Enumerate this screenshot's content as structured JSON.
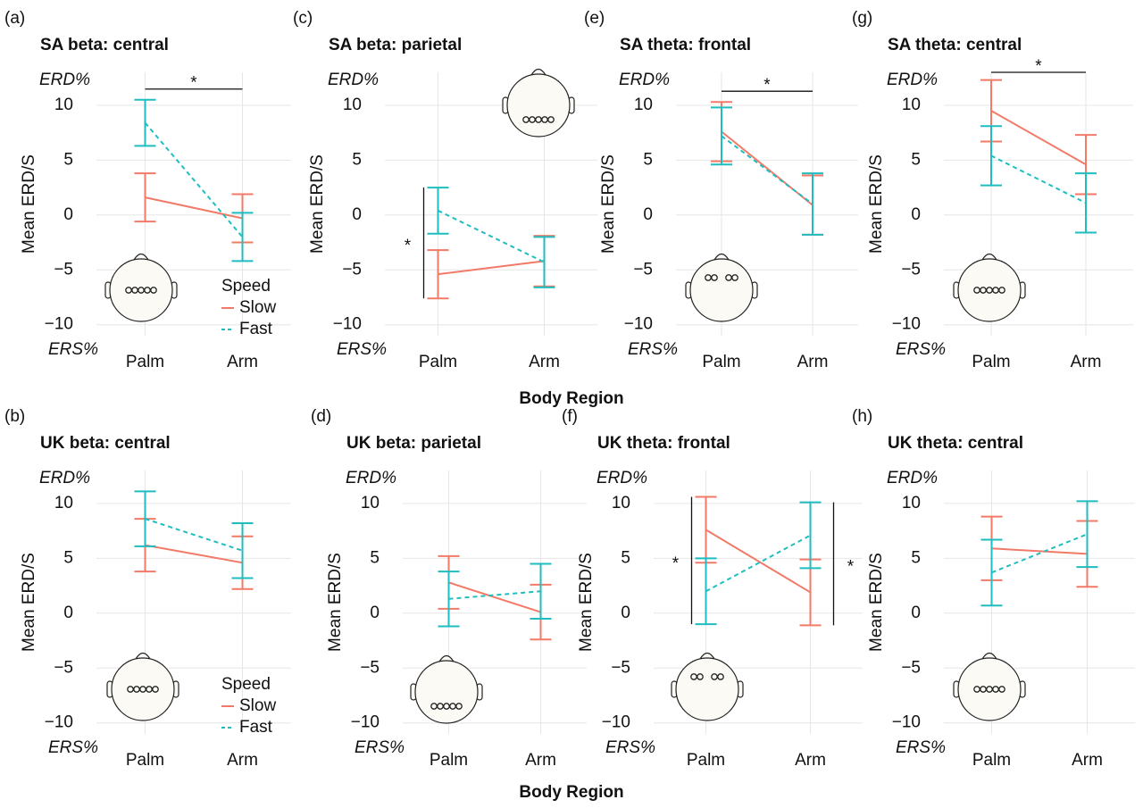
{
  "row_xlabels": [
    "Body Region",
    "Body Region"
  ],
  "chart_data": [
    {
      "type": "line",
      "panel": "(a)",
      "title": "SA beta: central",
      "ylabel": "Mean ERD/S",
      "top_note": "ERD%",
      "bottom_note": "ERS%",
      "categories": [
        "Palm",
        "Arm"
      ],
      "ylim": [
        -11,
        13
      ],
      "yticks": [
        {
          "value": -10,
          "label": "−10"
        },
        {
          "value": -5,
          "label": "−5"
        },
        0,
        5,
        10
      ],
      "grid": true,
      "legend": "bottom-right",
      "legend_title": "Speed",
      "series": [
        {
          "name": "Slow",
          "color": "#f27a67",
          "dash": false,
          "values": [
            1.6,
            -0.3
          ],
          "errors": [
            2.2,
            2.2
          ]
        },
        {
          "name": "Fast",
          "color": "#1fbdbf",
          "dash": true,
          "values": [
            8.4,
            -2
          ],
          "errors": [
            2.1,
            2.2
          ]
        }
      ],
      "significance": [
        {
          "text": "*",
          "side": "top"
        }
      ]
    },
    {
      "type": "line",
      "panel": "(c)",
      "title": "SA beta: parietal",
      "ylabel": "Mean ERD/S",
      "top_note": "ERD%",
      "bottom_note": "ERS%",
      "categories": [
        "Palm",
        "Arm"
      ],
      "ylim": [
        -11,
        13
      ],
      "yticks": [
        {
          "value": -10,
          "label": "−10"
        },
        {
          "value": -5,
          "label": "−5"
        },
        0,
        5,
        10
      ],
      "grid": true,
      "series": [
        {
          "name": "Slow",
          "color": "#f27a67",
          "dash": false,
          "values": [
            -5.4,
            -4.2
          ],
          "errors": [
            2.2,
            2.3
          ]
        },
        {
          "name": "Fast",
          "color": "#1fbdbf",
          "dash": true,
          "values": [
            0.4,
            -4.3
          ],
          "errors": [
            2.1,
            2.3
          ]
        }
      ],
      "significance": [
        {
          "text": "*",
          "side": "left"
        }
      ]
    },
    {
      "type": "line",
      "panel": "(e)",
      "title": "SA theta: frontal",
      "ylabel": "Mean ERD/S",
      "top_note": "ERD%",
      "bottom_note": "ERS%",
      "categories": [
        "Palm",
        "Arm"
      ],
      "ylim": [
        -11,
        13
      ],
      "yticks": [
        {
          "value": -10,
          "label": "−10"
        },
        {
          "value": -5,
          "label": "−5"
        },
        0,
        5,
        10
      ],
      "grid": true,
      "series": [
        {
          "name": "Slow",
          "color": "#f27a67",
          "dash": false,
          "values": [
            7.6,
            0.9
          ],
          "errors": [
            2.7,
            2.7
          ]
        },
        {
          "name": "Fast",
          "color": "#1fbdbf",
          "dash": true,
          "values": [
            7.2,
            1
          ],
          "errors": [
            2.6,
            2.8
          ]
        }
      ],
      "significance": [
        {
          "text": "*",
          "side": "top"
        }
      ]
    },
    {
      "type": "line",
      "panel": "(g)",
      "title": "SA theta: central",
      "ylabel": "Mean ERD/S",
      "top_note": "ERD%",
      "bottom_note": "ERS%",
      "categories": [
        "Palm",
        "Arm"
      ],
      "ylim": [
        -11,
        13
      ],
      "yticks": [
        {
          "value": -10,
          "label": "−10"
        },
        {
          "value": -5,
          "label": "−5"
        },
        0,
        5,
        10
      ],
      "grid": true,
      "series": [
        {
          "name": "Slow",
          "color": "#f27a67",
          "dash": false,
          "values": [
            9.5,
            4.6
          ],
          "errors": [
            2.8,
            2.7
          ]
        },
        {
          "name": "Fast",
          "color": "#1fbdbf",
          "dash": true,
          "values": [
            5.4,
            1.1
          ],
          "errors": [
            2.7,
            2.7
          ]
        }
      ],
      "significance": [
        {
          "text": "*",
          "side": "top"
        }
      ]
    },
    {
      "type": "line",
      "panel": "(b)",
      "title": "UK beta: central",
      "ylabel": "Mean ERD/S",
      "top_note": "ERD%",
      "bottom_note": "ERS%",
      "categories": [
        "Palm",
        "Arm"
      ],
      "ylim": [
        -11,
        13
      ],
      "yticks": [
        {
          "value": -10,
          "label": "−10"
        },
        {
          "value": -5,
          "label": "−5"
        },
        0,
        5,
        10
      ],
      "grid": true,
      "legend": "bottom-right",
      "legend_title": "Speed",
      "series": [
        {
          "name": "Slow",
          "color": "#f27a67",
          "dash": false,
          "values": [
            6.2,
            4.6
          ],
          "errors": [
            2.4,
            2.4
          ]
        },
        {
          "name": "Fast",
          "color": "#1fbdbf",
          "dash": true,
          "values": [
            8.6,
            5.7
          ],
          "errors": [
            2.5,
            2.5
          ]
        }
      ],
      "significance": []
    },
    {
      "type": "line",
      "panel": "(d)",
      "title": "UK beta: parietal",
      "ylabel": "Mean ERD/S",
      "top_note": "ERD%",
      "bottom_note": "ERS%",
      "categories": [
        "Palm",
        "Arm"
      ],
      "ylim": [
        -11,
        13
      ],
      "yticks": [
        {
          "value": -10,
          "label": "−10"
        },
        {
          "value": -5,
          "label": "−5"
        },
        0,
        5,
        10
      ],
      "grid": true,
      "series": [
        {
          "name": "Slow",
          "color": "#f27a67",
          "dash": false,
          "values": [
            2.8,
            0.1
          ],
          "errors": [
            2.4,
            2.5
          ]
        },
        {
          "name": "Fast",
          "color": "#1fbdbf",
          "dash": true,
          "values": [
            1.3,
            2
          ],
          "errors": [
            2.5,
            2.5
          ]
        }
      ],
      "significance": []
    },
    {
      "type": "line",
      "panel": "(f)",
      "title": "UK theta: frontal",
      "ylabel": "Mean ERD/S",
      "top_note": "ERD%",
      "bottom_note": "ERS%",
      "categories": [
        "Palm",
        "Arm"
      ],
      "ylim": [
        -11,
        13
      ],
      "yticks": [
        {
          "value": -10,
          "label": "−10"
        },
        {
          "value": -5,
          "label": "−5"
        },
        0,
        5,
        10
      ],
      "grid": true,
      "series": [
        {
          "name": "Slow",
          "color": "#f27a67",
          "dash": false,
          "values": [
            7.6,
            1.9
          ],
          "errors": [
            3,
            3
          ]
        },
        {
          "name": "Fast",
          "color": "#1fbdbf",
          "dash": true,
          "values": [
            2,
            7.1
          ],
          "errors": [
            3,
            3
          ]
        }
      ],
      "significance": [
        {
          "text": "*",
          "side": "left"
        },
        {
          "text": "*",
          "side": "right"
        }
      ]
    },
    {
      "type": "line",
      "panel": "(h)",
      "title": "UK theta: central",
      "ylabel": "Mean ERD/S",
      "top_note": "ERD%",
      "bottom_note": "ERS%",
      "categories": [
        "Palm",
        "Arm"
      ],
      "ylim": [
        -11,
        13
      ],
      "yticks": [
        {
          "value": -10,
          "label": "−10"
        },
        {
          "value": -5,
          "label": "−5"
        },
        0,
        5,
        10
      ],
      "grid": true,
      "series": [
        {
          "name": "Slow",
          "color": "#f27a67",
          "dash": false,
          "values": [
            5.9,
            5.4
          ],
          "errors": [
            2.9,
            3
          ]
        },
        {
          "name": "Fast",
          "color": "#1fbdbf",
          "dash": true,
          "values": [
            3.7,
            7.2
          ],
          "errors": [
            3,
            3
          ]
        }
      ],
      "significance": []
    }
  ]
}
